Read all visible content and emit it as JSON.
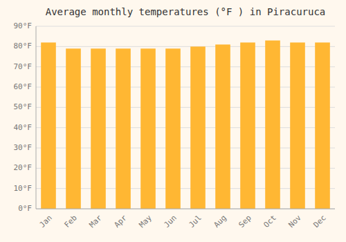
{
  "chart_data": {
    "type": "bar",
    "title": "Average monthly temperatures (°F ) in Piracuruca",
    "categories": [
      "Jan",
      "Feb",
      "Mar",
      "Apr",
      "May",
      "Jun",
      "Jul",
      "Aug",
      "Sep",
      "Oct",
      "Nov",
      "Dec"
    ],
    "values": [
      82,
      79,
      79,
      79,
      79,
      79,
      80,
      81,
      82,
      83,
      82,
      82
    ],
    "color": "#FFB733",
    "ylim": [
      0,
      90
    ],
    "yticks": [
      {
        "value": 0,
        "label": "0°F"
      },
      {
        "value": 10,
        "label": "10°F"
      },
      {
        "value": 20,
        "label": "20°F"
      },
      {
        "value": 30,
        "label": "30°F"
      },
      {
        "value": 40,
        "label": "40°F"
      },
      {
        "value": 50,
        "label": "50°F"
      },
      {
        "value": 60,
        "label": "60°F"
      },
      {
        "value": 70,
        "label": "70°F"
      },
      {
        "value": 80,
        "label": "80°F"
      },
      {
        "value": 90,
        "label": "90°F"
      }
    ],
    "grid": true
  }
}
